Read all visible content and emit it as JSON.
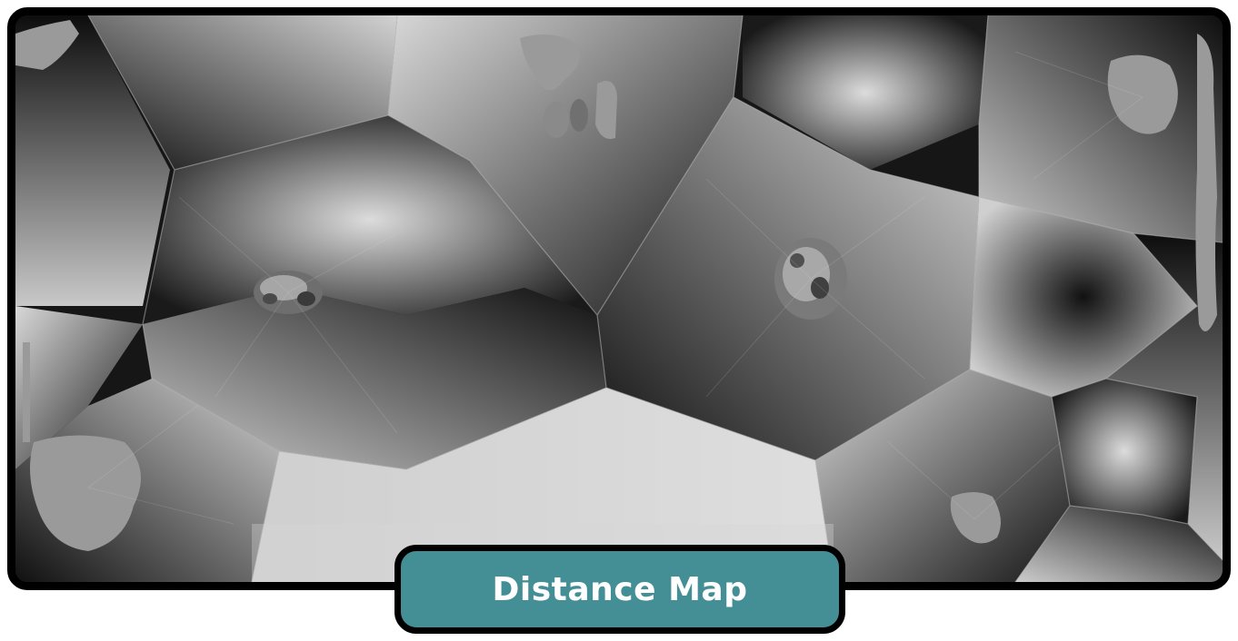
{
  "image": {
    "label": "Distance Map",
    "colors": {
      "frame": "#000000",
      "label_fill": "#448e96",
      "label_text": "#ffffff",
      "seed_gray": "#9a9a9a",
      "dark": "#0c0c0c",
      "light": "#d6d6d6"
    }
  }
}
